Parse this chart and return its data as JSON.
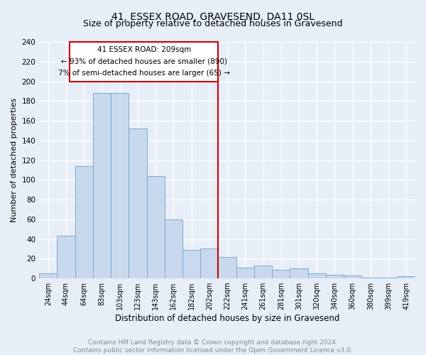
{
  "title": "41, ESSEX ROAD, GRAVESEND, DA11 0SL",
  "subtitle": "Size of property relative to detached houses in Gravesend",
  "xlabel": "Distribution of detached houses by size in Gravesend",
  "ylabel": "Number of detached properties",
  "bar_labels": [
    "24sqm",
    "44sqm",
    "64sqm",
    "83sqm",
    "103sqm",
    "123sqm",
    "143sqm",
    "162sqm",
    "182sqm",
    "202sqm",
    "222sqm",
    "241sqm",
    "261sqm",
    "281sqm",
    "301sqm",
    "320sqm",
    "340sqm",
    "360sqm",
    "380sqm",
    "399sqm",
    "419sqm"
  ],
  "bar_values": [
    5,
    43,
    114,
    188,
    188,
    152,
    104,
    60,
    29,
    30,
    22,
    11,
    13,
    9,
    10,
    5,
    4,
    3,
    1,
    1,
    2
  ],
  "bar_color": "#c9d9ed",
  "bar_edge_color": "#7aaad0",
  "background_color": "#e8eef8",
  "grid_color": "#ffffff",
  "vline_color": "#cc0000",
  "annotation_line1": "41 ESSEX ROAD: 209sqm",
  "annotation_line2": "← 93% of detached houses are smaller (890)",
  "annotation_line3": "7% of semi-detached houses are larger (65) →",
  "annotation_box_color": "#cc0000",
  "ylim": [
    0,
    240
  ],
  "yticks": [
    0,
    20,
    40,
    60,
    80,
    100,
    120,
    140,
    160,
    180,
    200,
    220,
    240
  ],
  "footer": "Contains HM Land Registry data © Crown copyright and database right 2024.\nContains public sector information licensed under the Open Government Licence v3.0.",
  "footer_color": "#888888",
  "title_fontsize": 10,
  "subtitle_fontsize": 9
}
